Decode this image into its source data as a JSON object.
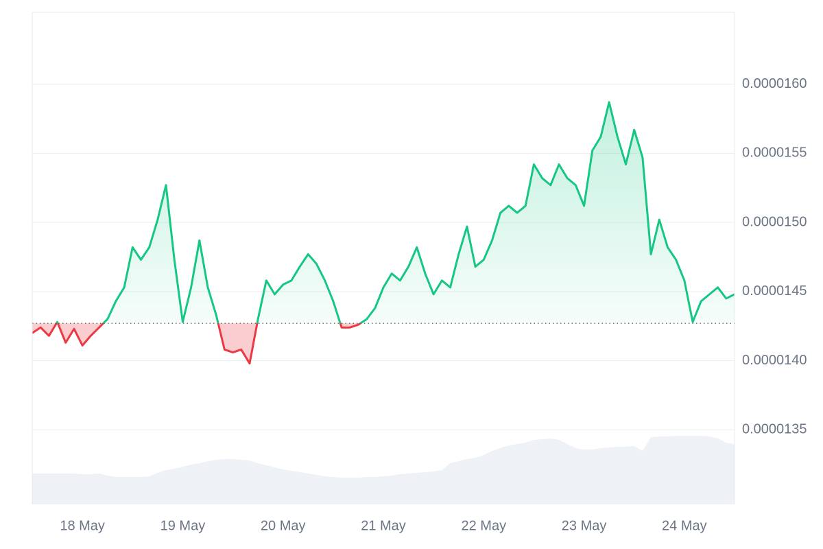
{
  "chart_data": {
    "type": "line",
    "categories": [
      null,
      null,
      null,
      null,
      null,
      null,
      "18 May",
      null,
      null,
      null,
      null,
      null,
      null,
      null,
      null,
      null,
      null,
      null,
      "19 May",
      null,
      null,
      null,
      null,
      null,
      null,
      null,
      null,
      null,
      null,
      null,
      "20 May",
      null,
      null,
      null,
      null,
      null,
      null,
      null,
      null,
      null,
      null,
      null,
      "21 May",
      null,
      null,
      null,
      null,
      null,
      null,
      null,
      null,
      null,
      null,
      null,
      "22 May",
      null,
      null,
      null,
      null,
      null,
      null,
      null,
      null,
      null,
      null,
      null,
      "23 May",
      null,
      null,
      null,
      null,
      null,
      null,
      null,
      null,
      null,
      null,
      null,
      "24 May",
      null,
      null,
      null,
      null,
      null,
      null
    ],
    "values": [
      1.42e-05,
      1.424e-05,
      1.418e-05,
      1.428e-05,
      1.413e-05,
      1.423e-05,
      1.411e-05,
      1.418e-05,
      1.424e-05,
      1.43e-05,
      1.443e-05,
      1.453e-05,
      1.482e-05,
      1.473e-05,
      1.482e-05,
      1.502e-05,
      1.527e-05,
      1.473e-05,
      1.428e-05,
      1.453e-05,
      1.487e-05,
      1.453e-05,
      1.433e-05,
      1.408e-05,
      1.406e-05,
      1.408e-05,
      1.398e-05,
      1.43e-05,
      1.458e-05,
      1.448e-05,
      1.455e-05,
      1.458e-05,
      1.468e-05,
      1.477e-05,
      1.47e-05,
      1.458e-05,
      1.443e-05,
      1.424e-05,
      1.424e-05,
      1.426e-05,
      1.43e-05,
      1.438e-05,
      1.453e-05,
      1.463e-05,
      1.458e-05,
      1.468e-05,
      1.482e-05,
      1.463e-05,
      1.448e-05,
      1.458e-05,
      1.453e-05,
      1.477e-05,
      1.497e-05,
      1.468e-05,
      1.473e-05,
      1.487e-05,
      1.507e-05,
      1.512e-05,
      1.507e-05,
      1.512e-05,
      1.542e-05,
      1.532e-05,
      1.527e-05,
      1.542e-05,
      1.532e-05,
      1.527e-05,
      1.512e-05,
      1.552e-05,
      1.562e-05,
      1.587e-05,
      1.562e-05,
      1.542e-05,
      1.567e-05,
      1.547e-05,
      1.477e-05,
      1.502e-05,
      1.482e-05,
      1.473e-05,
      1.458e-05,
      1.428e-05,
      1.443e-05,
      1.448e-05,
      1.453e-05,
      1.445e-05,
      1.448e-05
    ],
    "baseline": 1.427e-05,
    "up_color": "#16c784",
    "down_color": "#ea3943",
    "volume": [
      45,
      45,
      45,
      45,
      45,
      45,
      44,
      44,
      45,
      42,
      40,
      40,
      40,
      40,
      41,
      46,
      50,
      52,
      55,
      58,
      60,
      63,
      65,
      66,
      66,
      65,
      64,
      60,
      57,
      54,
      51,
      49,
      47,
      45,
      43,
      41,
      40,
      39,
      39,
      39,
      40,
      40,
      41,
      42,
      44,
      45,
      46,
      47,
      48,
      50,
      60,
      63,
      66,
      68,
      72,
      78,
      82,
      86,
      88,
      90,
      94,
      95,
      96,
      94,
      88,
      82,
      80,
      80,
      82,
      83,
      84,
      84,
      85,
      78,
      98,
      99,
      99,
      100,
      100,
      100,
      100,
      99,
      96,
      90,
      88
    ],
    "volume_color": "#eef1f5",
    "volume_ylim": [
      0,
      100
    ],
    "ylim": [
      1.296e-05,
      1.652e-05
    ],
    "yticks": [
      {
        "value": 1.35e-05,
        "label": "0.0000135"
      },
      {
        "value": 1.4e-05,
        "label": "0.0000140"
      },
      {
        "value": 1.45e-05,
        "label": "0.0000145"
      },
      {
        "value": 1.5e-05,
        "label": "0.0000150"
      },
      {
        "value": 1.55e-05,
        "label": "0.0000155"
      },
      {
        "value": 1.6e-05,
        "label": "0.0000160"
      }
    ],
    "grid": true
  }
}
